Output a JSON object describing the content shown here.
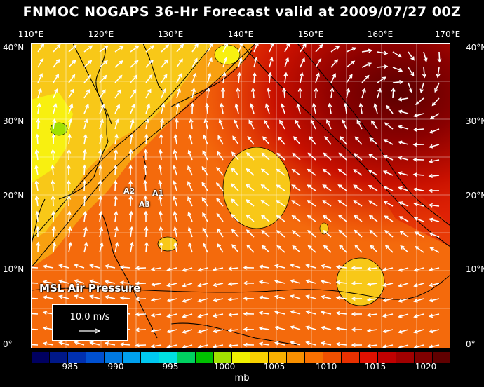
{
  "title": "FNMOC NOGAPS 36-Hr Forecast valid at 2009/07/27 00Z",
  "lon_labels": [
    "110°E",
    "120°E",
    "130°E",
    "140°E",
    "150°E",
    "160°E",
    "170°E"
  ],
  "lat_labels": [
    "40°N",
    "30°N",
    "20°N",
    "10°N",
    "0°"
  ],
  "overlay_label": "MSL Air Pressure",
  "vector_legend": "10.0 m/s",
  "markers": [
    "A1",
    "A2",
    "A3"
  ],
  "colorbar": {
    "colors": [
      "#000060",
      "#001888",
      "#0030b0",
      "#0050d0",
      "#0078e0",
      "#00a0ee",
      "#00c8f0",
      "#00e0e0",
      "#00d060",
      "#00c000",
      "#a0e000",
      "#f0f000",
      "#f8d000",
      "#f8b000",
      "#f89000",
      "#f87000",
      "#f05000",
      "#e83000",
      "#e01000",
      "#c00000",
      "#a00000",
      "#800000",
      "#600000"
    ],
    "tick_labels": [
      "985",
      "990",
      "995",
      "1000",
      "1005",
      "1010",
      "1015",
      "1020"
    ],
    "unit": "mb"
  }
}
